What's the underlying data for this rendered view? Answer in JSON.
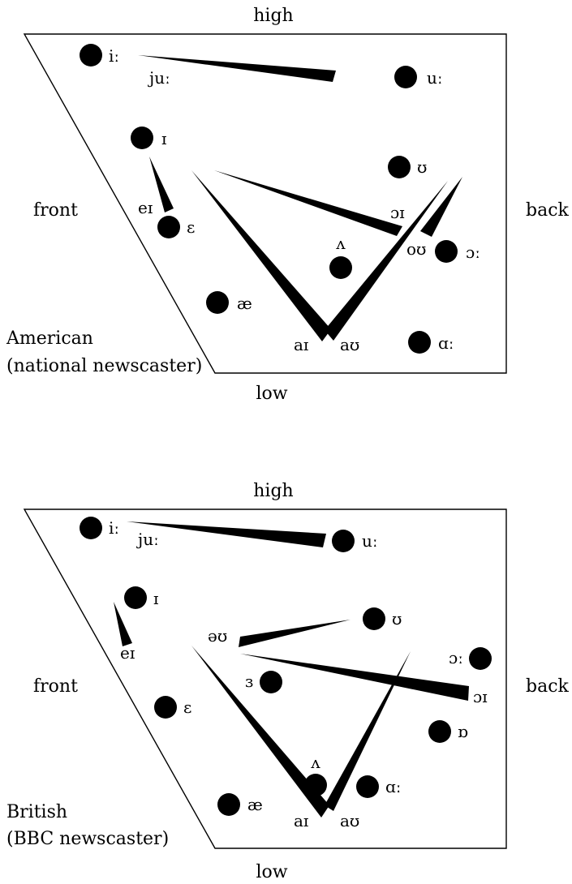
{
  "charts": [
    {
      "id": "american",
      "title": "American",
      "subtitle": "(national newscaster)",
      "axes": {
        "top": "high",
        "bottom": "low",
        "left": "front",
        "right": "back"
      },
      "monophthongs": [
        "iː",
        "uː",
        "ɪ",
        "ʊ",
        "ɛ",
        "ʌ",
        "ɔː",
        "æ",
        "ɑː"
      ],
      "diphthongs": [
        "juː",
        "eɪ",
        "ɔɪ",
        "oʊ",
        "aɪ",
        "aʊ"
      ]
    },
    {
      "id": "british",
      "title": "British",
      "subtitle": "(BBC newscaster)",
      "axes": {
        "top": "high",
        "bottom": "low",
        "left": "front",
        "right": "back"
      },
      "monophthongs": [
        "iː",
        "uː",
        "ɪ",
        "ʊ",
        "ɜ",
        "ɔː",
        "ɛ",
        "ɒ",
        "ʌ",
        "ɑː",
        "æ"
      ],
      "diphthongs": [
        "juː",
        "eɪ",
        "əʊ",
        "ɔɪ",
        "aɪ",
        "aʊ"
      ]
    }
  ]
}
